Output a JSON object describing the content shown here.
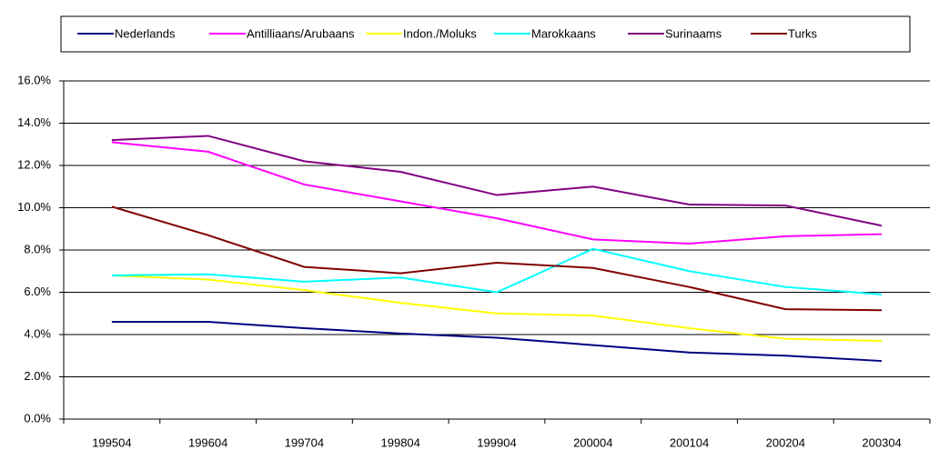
{
  "chart_data": {
    "type": "line",
    "categories": [
      "199504",
      "199604",
      "199704",
      "199804",
      "199904",
      "200004",
      "200104",
      "200204",
      "200304"
    ],
    "series": [
      {
        "name": "Nederlands",
        "color": "#000080",
        "values": [
          4.6,
          4.6,
          4.3,
          4.05,
          3.85,
          3.5,
          3.15,
          3.0,
          2.75
        ]
      },
      {
        "name": "Antilliaans/Arubaans",
        "color": "#ff00ff",
        "values": [
          13.1,
          12.65,
          11.1,
          10.3,
          9.5,
          8.5,
          8.3,
          8.65,
          8.75
        ]
      },
      {
        "name": "Indon./Moluks",
        "color": "#ffff00",
        "values": [
          6.8,
          6.6,
          6.1,
          5.5,
          5.0,
          4.9,
          4.3,
          3.8,
          3.7
        ]
      },
      {
        "name": "Marokkaans",
        "color": "#00ffff",
        "values": [
          6.8,
          6.85,
          6.5,
          6.7,
          6.0,
          8.05,
          7.0,
          6.25,
          5.9
        ]
      },
      {
        "name": "Surinaams",
        "color": "#800080",
        "values": [
          13.2,
          13.4,
          12.2,
          11.7,
          10.6,
          11.0,
          10.15,
          10.1,
          9.15
        ]
      },
      {
        "name": "Turks",
        "color": "#800000",
        "values": [
          10.05,
          8.7,
          7.2,
          6.9,
          7.4,
          7.15,
          6.25,
          5.2,
          5.15
        ]
      }
    ],
    "ylim": [
      0,
      16
    ],
    "yticks": [
      {
        "value": 0,
        "label": "0.0%"
      },
      {
        "value": 2,
        "label": "2.0%"
      },
      {
        "value": 4,
        "label": "4.0%"
      },
      {
        "value": 6,
        "label": "6.0%"
      },
      {
        "value": 8,
        "label": "8.0%"
      },
      {
        "value": 10,
        "label": "10.0%"
      },
      {
        "value": 12,
        "label": "12.0%"
      },
      {
        "value": 14,
        "label": "14.0%"
      },
      {
        "value": 16,
        "label": "16.0%"
      }
    ],
    "grid": true,
    "legend": "top"
  }
}
